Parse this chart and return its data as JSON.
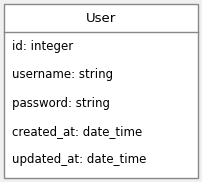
{
  "title": "User",
  "fields": [
    "id: integer",
    "username: string",
    "password: string",
    "created_at: date_time",
    "updated_at: date_time"
  ],
  "bg_color": "#f0f0f0",
  "box_bg_color": "#ffffff",
  "border_color": "#888888",
  "text_color": "#000000",
  "title_bg_color": "#ffffff",
  "font_size": 8.5,
  "title_font_size": 9.5,
  "fig_width": 2.02,
  "fig_height": 1.82,
  "dpi": 100
}
